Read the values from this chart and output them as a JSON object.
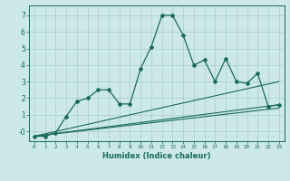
{
  "xlabel": "Humidex (Indice chaleur)",
  "ylabel": "",
  "bg_color": "#cce8e8",
  "grid_color": "#aacccc",
  "line_color": "#1a6b5a",
  "xlim": [
    -0.5,
    23.5
  ],
  "ylim": [
    -0.6,
    7.6
  ],
  "xticks": [
    0,
    1,
    2,
    3,
    4,
    5,
    6,
    7,
    8,
    9,
    10,
    11,
    12,
    13,
    14,
    15,
    16,
    17,
    18,
    19,
    20,
    21,
    22,
    23
  ],
  "yticks": [
    0,
    1,
    2,
    3,
    4,
    5,
    6,
    7
  ],
  "ytick_labels": [
    "-0",
    "1",
    "2",
    "3",
    "4",
    "5",
    "6",
    "7"
  ],
  "jagged_x": [
    0,
    1,
    2,
    3,
    4,
    5,
    6,
    7,
    8,
    9,
    10,
    11,
    12,
    13,
    14,
    15,
    16,
    17,
    18,
    19,
    20,
    21,
    22,
    23
  ],
  "jagged_y": [
    -0.3,
    -0.3,
    -0.1,
    0.9,
    1.8,
    2.0,
    2.5,
    2.5,
    1.65,
    1.65,
    3.8,
    5.1,
    7.0,
    7.0,
    5.8,
    4.0,
    4.3,
    3.0,
    4.4,
    3.0,
    2.9,
    3.5,
    1.5,
    1.6
  ],
  "trend1_x": [
    0,
    23
  ],
  "trend1_y": [
    -0.3,
    3.0
  ],
  "trend2_x": [
    0,
    23
  ],
  "trend2_y": [
    -0.3,
    1.6
  ],
  "trend3_x": [
    0,
    23
  ],
  "trend3_y": [
    -0.3,
    1.4
  ]
}
